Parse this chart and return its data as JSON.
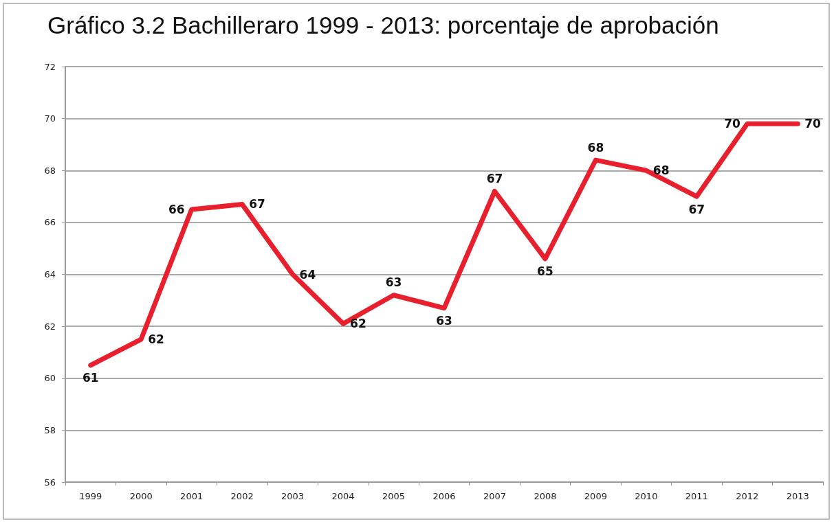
{
  "chart_data": {
    "type": "line",
    "title": "Gráfico 3.2 Bachilleraro 1999 - 2013: porcentaje de aprobación",
    "categories": [
      "1999",
      "2000",
      "2001",
      "2002",
      "2003",
      "2004",
      "2005",
      "2006",
      "2007",
      "2008",
      "2009",
      "2010",
      "2011",
      "2012",
      "2013"
    ],
    "series": [
      {
        "color": "#e8202e",
        "values": [
          60.5,
          61.5,
          66.5,
          66.7,
          64.0,
          62.1,
          63.2,
          62.7,
          67.2,
          64.6,
          68.4,
          68.0,
          67.0,
          69.8,
          69.8
        ],
        "value_labels": [
          "61",
          "62",
          "66",
          "67",
          "64",
          "62",
          "63",
          "63",
          "67",
          "65",
          "68",
          "68",
          "67",
          "70",
          "70"
        ]
      }
    ],
    "ylim": [
      56,
      72
    ],
    "yticks": [
      56,
      58,
      60,
      62,
      64,
      66,
      68,
      70,
      72
    ],
    "grid": "y",
    "marker": "none",
    "line_style": "solid"
  }
}
